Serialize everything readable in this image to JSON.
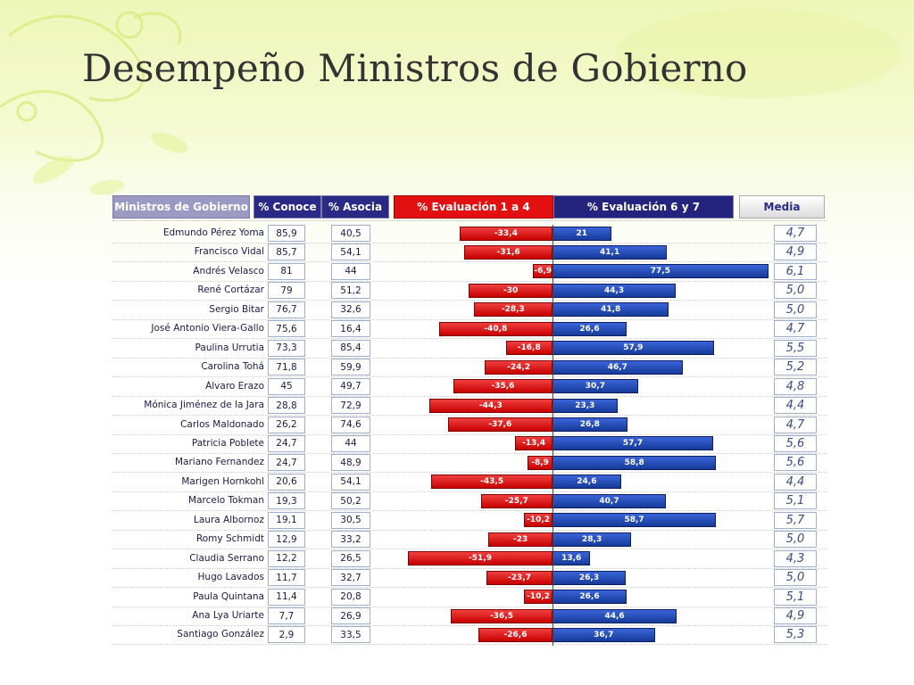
{
  "title": "Desempeño Ministros de Gobierno",
  "headers": {
    "ministros": "Ministros de Gobierno",
    "conoce": "% Conoce",
    "asocia": "% Asocia",
    "eval14": "% Evaluación 1 a 4",
    "eval67": "% Evaluación 6 y 7",
    "media": "Media"
  },
  "colors": {
    "negative_bar": "#d40000",
    "positive_bar": "#1f47b5",
    "header_dark": "#2a2a86",
    "header_red": "#e21010"
  },
  "chart_data": {
    "type": "bar",
    "orientation": "horizontal-diverging",
    "categories": [
      "Edmundo Pérez Yoma",
      "Francisco Vidal",
      "Andrés Velasco",
      "René Cortázar",
      "Sergio Bitar",
      "José Antonio Viera-Gallo",
      "Paulina Urrutia",
      "Carolina Tohá",
      "Álvaro Erazo",
      "Mónica Jiménez de la Jara",
      "Carlos Maldonado",
      "Patricia Poblete",
      "Mariano Fernandez",
      "Marigen Hornkohl",
      "Marcelo Tokman",
      "Laura Albornoz",
      "Romy Schmidt",
      "Claudia Serrano",
      "Hugo Lavados",
      "Paula Quintana",
      "Ana Lya Uriarte",
      "Santiago González"
    ],
    "series": [
      {
        "name": "% Evaluación 1 a 4",
        "values": [
          -33.4,
          -31.6,
          -6.9,
          -30,
          -28.3,
          -40.8,
          -16.8,
          -24.2,
          -35.6,
          -44.3,
          -37.6,
          -13.4,
          -8.9,
          -43.5,
          -25.7,
          -10.2,
          -23,
          -51.9,
          -23.7,
          -10.2,
          -36.5,
          -26.6
        ]
      },
      {
        "name": "% Evaluación 6 y 7",
        "values": [
          21,
          41.1,
          77.5,
          44.3,
          41.8,
          26.6,
          57.9,
          46.7,
          30.7,
          23.3,
          26.8,
          57.7,
          58.8,
          24.6,
          40.7,
          58.7,
          28.3,
          13.6,
          26.3,
          26.6,
          44.6,
          36.7
        ]
      }
    ],
    "columns": {
      "conoce": [
        "85,9",
        "85,7",
        "81",
        "79",
        "76,7",
        "75,6",
        "73,3",
        "71,8",
        "45",
        "28,8",
        "26,2",
        "24,7",
        "24,7",
        "20,6",
        "19,3",
        "19,1",
        "12,9",
        "12,2",
        "11,7",
        "11,4",
        "7,7",
        "2,9"
      ],
      "asocia": [
        "40,5",
        "54,1",
        "44",
        "51,2",
        "32,6",
        "16,4",
        "85,4",
        "59,9",
        "49,7",
        "72,9",
        "74,6",
        "44",
        "48,9",
        "54,1",
        "50,2",
        "30,5",
        "33,2",
        "26,5",
        "32,7",
        "20,8",
        "26,9",
        "33,5"
      ],
      "media": [
        "4,7",
        "4,9",
        "6,1",
        "5,0",
        "5,0",
        "4,7",
        "5,5",
        "5,2",
        "4,8",
        "4,4",
        "4,7",
        "5,6",
        "5,6",
        "4,4",
        "5,1",
        "5,7",
        "5,0",
        "4,3",
        "5,0",
        "5,1",
        "4,9",
        "5,3"
      ]
    },
    "neg_labels": [
      "-33,4",
      "-31,6",
      "-6,9",
      "-30",
      "-28,3",
      "-40,8",
      "-16,8",
      "-24,2",
      "-35,6",
      "-44,3",
      "-37,6",
      "-13,4",
      "-8,9",
      "-43,5",
      "-25,7",
      "-10,2",
      "-23",
      "-51,9",
      "-23,7",
      "-10,2",
      "-36,5",
      "-26,6"
    ],
    "pos_labels": [
      "21",
      "41,1",
      "77,5",
      "44,3",
      "41,8",
      "26,6",
      "57,9",
      "46,7",
      "30,7",
      "23,3",
      "26,8",
      "57,7",
      "58,8",
      "24,6",
      "40,7",
      "58,7",
      "28,3",
      "13,6",
      "26,3",
      "26,6",
      "44,6",
      "36,7"
    ],
    "title": "",
    "xlabel": "",
    "ylabel": "",
    "legend": "none"
  }
}
